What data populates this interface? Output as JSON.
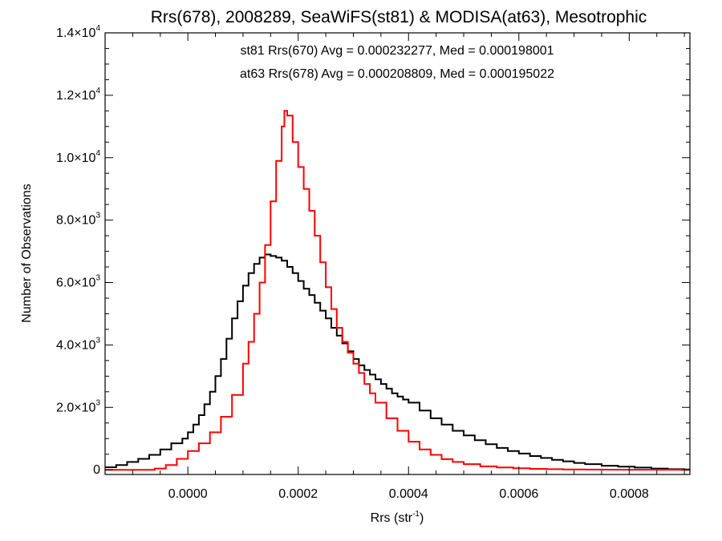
{
  "chart_data": {
    "type": "histogram",
    "title": "Rrs(678), 2008289, SeaWiFS(st81) & MODISA(at63), Mesotrophic",
    "xlabel_base": "Rrs (str",
    "xlabel_sup": "-1",
    "xlabel_close": ")",
    "ylabel": "Number of Observations",
    "xlim": [
      -0.00015,
      0.00091
    ],
    "ylim": [
      -150,
      14000
    ],
    "x_ticks": [
      {
        "value": 0.0,
        "label": "0.0000"
      },
      {
        "value": 0.0002,
        "label": "0.0002"
      },
      {
        "value": 0.0004,
        "label": "0.0004"
      },
      {
        "value": 0.0006,
        "label": "0.0006"
      },
      {
        "value": 0.0008,
        "label": "0.0008"
      }
    ],
    "y_ticks": [
      {
        "value": 0,
        "mant": "0",
        "exp": ""
      },
      {
        "value": 2000,
        "mant": "2.0×10",
        "exp": "3"
      },
      {
        "value": 4000,
        "mant": "4.0×10",
        "exp": "3"
      },
      {
        "value": 6000,
        "mant": "6.0×10",
        "exp": "3"
      },
      {
        "value": 8000,
        "mant": "8.0×10",
        "exp": "3"
      },
      {
        "value": 10000,
        "mant": "1.0×10",
        "exp": "4"
      },
      {
        "value": 12000,
        "mant": "1.2×10",
        "exp": "4"
      },
      {
        "value": 14000,
        "mant": "1.4×10",
        "exp": "4"
      }
    ],
    "annotations": [
      {
        "text": "st81 Rrs(670) Avg = 0.000232277, Med = 0.000198001",
        "color": "#000000"
      },
      {
        "text": "at63 Rrs(678) Avg = 0.000208809, Med = 0.000195022",
        "color": "#ff0000"
      }
    ],
    "series": [
      {
        "sensor": "st81",
        "color": "#000000",
        "style": "step",
        "x": [
          -0.00015,
          -0.00013,
          -0.00011,
          -9e-05,
          -7e-05,
          -5e-05,
          -3e-05,
          -1e-05,
          0.0,
          1e-05,
          2e-05,
          3e-05,
          4e-05,
          5e-05,
          6e-05,
          7e-05,
          8e-05,
          9e-05,
          0.0001,
          0.00011,
          0.00012,
          0.00013,
          0.00014,
          0.00015,
          0.00016,
          0.00017,
          0.00018,
          0.00019,
          0.0002,
          0.00021,
          0.00022,
          0.00023,
          0.00024,
          0.00025,
          0.00026,
          0.00027,
          0.00028,
          0.00029,
          0.0003,
          0.00031,
          0.00032,
          0.00033,
          0.00034,
          0.00035,
          0.00036,
          0.00037,
          0.00038,
          0.00039,
          0.0004,
          0.00042,
          0.00044,
          0.00046,
          0.00048,
          0.0005,
          0.00052,
          0.00054,
          0.00056,
          0.00058,
          0.0006,
          0.00062,
          0.00064,
          0.00066,
          0.00068,
          0.0007,
          0.00072,
          0.00075,
          0.00078,
          0.00081,
          0.00084,
          0.00087,
          0.0009
        ],
        "y": [
          80,
          150,
          250,
          350,
          480,
          650,
          850,
          1000,
          1200,
          1450,
          1750,
          2100,
          2500,
          3000,
          3550,
          4200,
          4850,
          5400,
          5900,
          6300,
          6600,
          6800,
          6900,
          6850,
          6800,
          6700,
          6500,
          6300,
          6050,
          5800,
          5600,
          5350,
          5100,
          4850,
          4550,
          4300,
          4050,
          3800,
          3550,
          3350,
          3200,
          3050,
          2900,
          2750,
          2600,
          2450,
          2350,
          2250,
          2150,
          1900,
          1650,
          1450,
          1250,
          1100,
          950,
          820,
          700,
          600,
          520,
          440,
          380,
          320,
          270,
          220,
          180,
          130,
          100,
          70,
          40,
          20,
          10
        ]
      },
      {
        "sensor": "at63",
        "color": "#ff0000",
        "style": "step",
        "x": [
          -0.00015,
          -0.00011,
          -8e-05,
          -6e-05,
          -4e-05,
          -2e-05,
          0.0,
          2e-05,
          4e-05,
          6e-05,
          8e-05,
          0.0001,
          0.00011,
          0.00012,
          0.00013,
          0.00014,
          0.00015,
          0.00016,
          0.00017,
          0.000175,
          0.00018,
          0.00019,
          0.0002,
          0.00021,
          0.00022,
          0.00023,
          0.00024,
          0.00025,
          0.00026,
          0.00027,
          0.00028,
          0.00029,
          0.0003,
          0.00031,
          0.00032,
          0.00033,
          0.00034,
          0.00036,
          0.00038,
          0.0004,
          0.00042,
          0.00044,
          0.00046,
          0.00048,
          0.0005,
          0.00053,
          0.00056,
          0.00059,
          0.00062,
          0.00065,
          0.00068,
          0.00072,
          0.00076,
          0.0008,
          0.00085,
          0.0009
        ],
        "y": [
          0,
          0,
          0,
          40,
          150,
          350,
          600,
          850,
          1200,
          1700,
          2400,
          3400,
          4100,
          5000,
          6000,
          7200,
          8600,
          9900,
          11000,
          11500,
          11350,
          10500,
          9700,
          9000,
          8300,
          7500,
          6650,
          5850,
          5150,
          4550,
          4100,
          3750,
          3400,
          3100,
          2750,
          2450,
          2150,
          1650,
          1250,
          900,
          650,
          480,
          340,
          250,
          180,
          110,
          75,
          50,
          30,
          20,
          12,
          6,
          3,
          2,
          1,
          0
        ]
      }
    ]
  }
}
